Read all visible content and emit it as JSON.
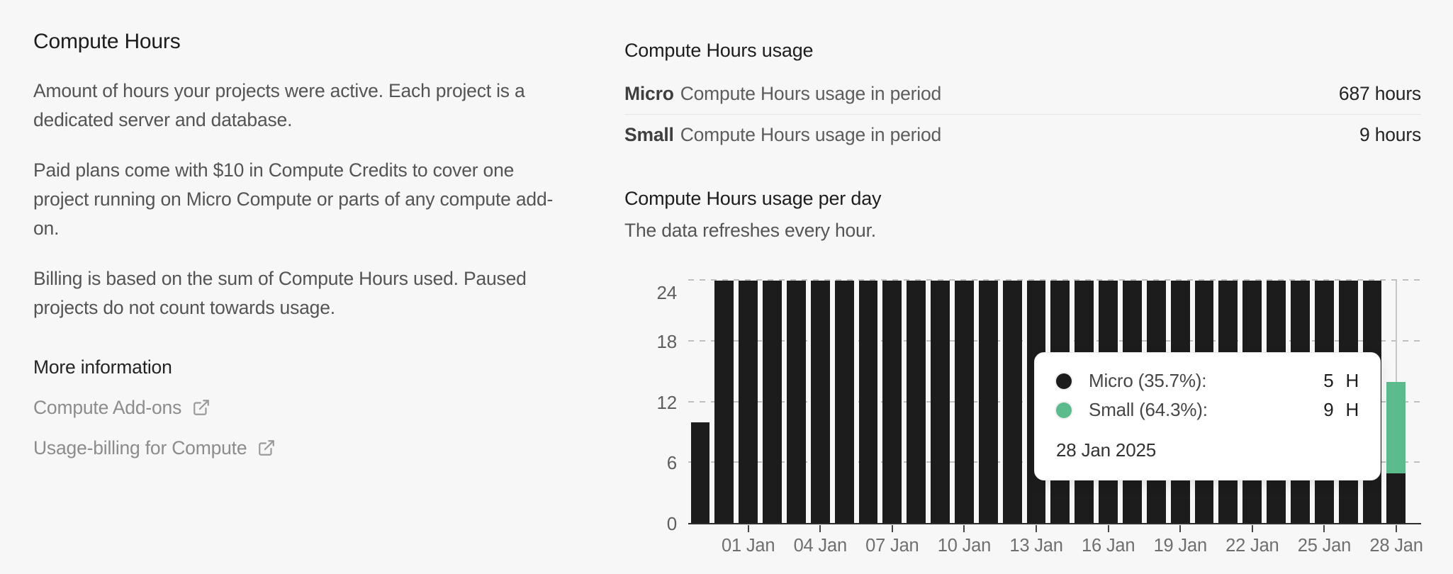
{
  "left_panel": {
    "title": "Compute Hours",
    "paragraphs": [
      "Amount of hours your projects were active. Each project is a dedicated server and database.",
      "Paid plans come with $10 in Compute Credits to cover one project running on Micro Compute or parts of any compute add-on.",
      "Billing is based on the sum of Compute Hours used. Paused projects do not count towards usage."
    ],
    "more_info": {
      "title": "More information",
      "links": [
        {
          "label": "Compute Add-ons"
        },
        {
          "label": "Usage-billing for Compute"
        }
      ]
    }
  },
  "usage_summary": {
    "title": "Compute Hours usage",
    "rows": [
      {
        "tier": "Micro",
        "label": "Compute Hours usage in period",
        "value": "687 hours"
      },
      {
        "tier": "Small",
        "label": "Compute Hours usage in period",
        "value": "9 hours"
      }
    ]
  },
  "chart_section": {
    "title": "Compute Hours usage per day",
    "subtitle": "The data refreshes every hour."
  },
  "tooltip": {
    "rows": [
      {
        "name": "Micro",
        "label": "Micro (35.7%):",
        "value": "5",
        "unit": "H",
        "color": "#1c1c1c"
      },
      {
        "name": "Small",
        "label": "Small (64.3%):",
        "value": "9",
        "unit": "H",
        "color": "#5cbb8c"
      }
    ],
    "date": "28 Jan 2025"
  },
  "chart_data": {
    "type": "bar",
    "stacked": true,
    "title": "Compute Hours usage per day",
    "xlabel": "",
    "ylabel": "Hours",
    "ylim": [
      0,
      24
    ],
    "y_ticks": [
      0,
      6,
      12,
      18,
      24
    ],
    "grid": "dashed-horizontal",
    "legend_position": "tooltip-only",
    "categories": [
      "30 Dec",
      "31 Dec",
      "01 Jan",
      "02 Jan",
      "03 Jan",
      "04 Jan",
      "05 Jan",
      "06 Jan",
      "07 Jan",
      "08 Jan",
      "09 Jan",
      "10 Jan",
      "11 Jan",
      "12 Jan",
      "13 Jan",
      "14 Jan",
      "15 Jan",
      "16 Jan",
      "17 Jan",
      "18 Jan",
      "19 Jan",
      "20 Jan",
      "21 Jan",
      "22 Jan",
      "23 Jan",
      "24 Jan",
      "25 Jan",
      "26 Jan",
      "27 Jan",
      "28 Jan"
    ],
    "series": [
      {
        "name": "Micro",
        "color": "#1c1c1c",
        "values": [
          10,
          24,
          24,
          24,
          24,
          24,
          24,
          24,
          24,
          24,
          24,
          24,
          24,
          24,
          24,
          24,
          24,
          24,
          24,
          24,
          24,
          24,
          24,
          24,
          24,
          24,
          24,
          24,
          24,
          5
        ]
      },
      {
        "name": "Small",
        "color": "#5cbb8c",
        "values": [
          0,
          0,
          0,
          0,
          0,
          0,
          0,
          0,
          0,
          0,
          0,
          0,
          0,
          0,
          0,
          0,
          0,
          0,
          0,
          0,
          0,
          0,
          0,
          0,
          0,
          0,
          0,
          0,
          0,
          9
        ]
      }
    ],
    "x_ticks": [
      {
        "index": 2,
        "label": "01 Jan"
      },
      {
        "index": 5,
        "label": "04 Jan"
      },
      {
        "index": 8,
        "label": "07 Jan"
      },
      {
        "index": 11,
        "label": "10 Jan"
      },
      {
        "index": 14,
        "label": "13 Jan"
      },
      {
        "index": 17,
        "label": "16 Jan"
      },
      {
        "index": 20,
        "label": "19 Jan"
      },
      {
        "index": 23,
        "label": "22 Jan"
      },
      {
        "index": 26,
        "label": "25 Jan"
      },
      {
        "index": 29,
        "label": "28 Jan"
      }
    ],
    "hover_index": 29
  }
}
